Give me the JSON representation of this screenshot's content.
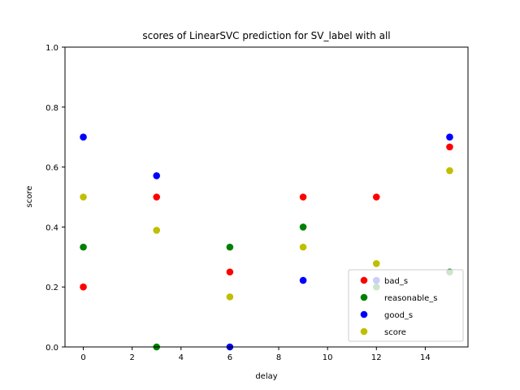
{
  "chart_data": {
    "type": "scatter",
    "title": "scores of LinearSVC prediction for SV_label with all",
    "xlabel": "delay",
    "ylabel": "score",
    "xlim": [
      -0.75,
      15.75
    ],
    "ylim": [
      0,
      1
    ],
    "x_ticks": [
      0,
      2,
      4,
      6,
      8,
      10,
      12,
      14
    ],
    "y_ticks": [
      0.0,
      0.2,
      0.4,
      0.6,
      0.8,
      1.0
    ],
    "x_tick_labels": [
      "0",
      "2",
      "4",
      "6",
      "8",
      "10",
      "12",
      "14"
    ],
    "y_tick_labels": [
      "0.0",
      "0.2",
      "0.4",
      "0.6",
      "0.8",
      "1.0"
    ],
    "grid": false,
    "legend_position": "lower-right",
    "x": [
      0,
      3,
      6,
      9,
      12,
      15
    ],
    "series": [
      {
        "name": "bad_s",
        "color": "#ff0000",
        "values": [
          0.2,
          0.5,
          0.25,
          0.5,
          0.5,
          0.667
        ]
      },
      {
        "name": "reasonable_s",
        "color": "#008000",
        "values": [
          0.333,
          0.0,
          0.333,
          0.4,
          0.2,
          0.25
        ]
      },
      {
        "name": "good_s",
        "color": "#0000ff",
        "values": [
          0.7,
          0.571,
          0.0,
          0.222,
          0.222,
          0.7
        ]
      },
      {
        "name": "score",
        "color": "#bfbf00",
        "values": [
          0.5,
          0.389,
          0.167,
          0.333,
          0.278,
          0.588
        ]
      }
    ]
  }
}
